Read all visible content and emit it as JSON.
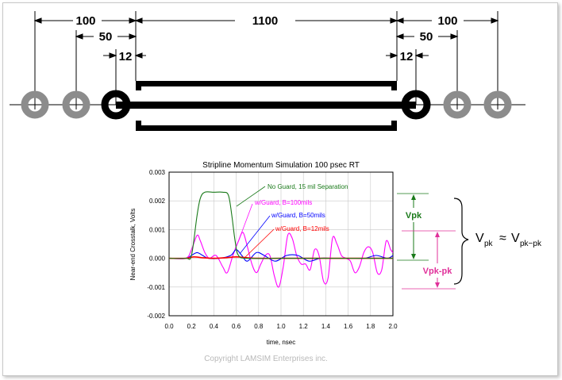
{
  "dimensions": {
    "d100_left": "100",
    "d50_left": "50",
    "d12_left": "12",
    "d1100": "1100",
    "d100_right": "100",
    "d50_right": "50",
    "d12_right": "12"
  },
  "colors": {
    "via_gray": "#8c8c8c",
    "trace": "#000000",
    "green": "#1a7a1a",
    "magenta": "#ff00ff",
    "blue": "#0000ff",
    "red": "#ff0000",
    "accent_pink": "#e0309a"
  },
  "chart_data": {
    "type": "line",
    "title": "Stripline Momentum Simulation 100 psec RT",
    "xlabel": "time, nsec",
    "ylabel": "Near-end Crosstalk, Volts",
    "xlim": [
      0.0,
      2.0
    ],
    "ylim": [
      -0.002,
      0.003
    ],
    "x_ticks": [
      "0.0",
      "0.2",
      "0.4",
      "0.6",
      "0.8",
      "1.0",
      "1.2",
      "1.4",
      "1.6",
      "1.8",
      "2.0"
    ],
    "y_ticks": [
      "0.003",
      "0.002",
      "0.001",
      "0.000",
      "-0.001",
      "-0.002"
    ],
    "grid": true,
    "series": [
      {
        "name": "No Guard, 15 mil Separation",
        "color": "#1a7a1a",
        "x": [
          0.0,
          0.15,
          0.2,
          0.25,
          0.28,
          0.32,
          0.4,
          0.48,
          0.53,
          0.56,
          0.59,
          0.62,
          0.7,
          1.0,
          2.0
        ],
        "y": [
          0.0,
          0.0,
          0.0001,
          0.0015,
          0.0021,
          0.0023,
          0.0023,
          0.0023,
          0.0022,
          0.0015,
          0.0006,
          0.0001,
          0.0,
          0.0,
          0.0
        ]
      },
      {
        "name": "w/Guard, B=100mils",
        "color": "#ff00ff",
        "x": [
          0.0,
          0.15,
          0.2,
          0.25,
          0.28,
          0.32,
          0.36,
          0.42,
          0.48,
          0.52,
          0.57,
          0.62,
          0.66,
          0.7,
          0.74,
          0.78,
          0.82,
          0.86,
          0.9,
          0.94,
          0.98,
          1.02,
          1.06,
          1.1,
          1.14,
          1.18,
          1.22,
          1.26,
          1.3,
          1.34,
          1.38,
          1.42,
          1.46,
          1.5,
          1.54,
          1.58,
          1.62,
          1.66,
          1.7,
          1.74,
          1.78,
          1.82,
          1.86,
          1.9,
          1.94,
          1.98,
          2.0
        ],
        "y": [
          0.0,
          0.0,
          0.0003,
          0.0008,
          0.0006,
          0.0002,
          0.0,
          0.0001,
          -0.0003,
          -0.0005,
          0.0001,
          0.0006,
          0.0009,
          0.0004,
          -0.0002,
          -0.0005,
          -0.0002,
          0.0001,
          0.0001,
          -0.0006,
          -0.001,
          -0.0003,
          0.0008,
          0.0007,
          0.0001,
          -0.0002,
          -0.0002,
          -0.0004,
          0.0003,
          0.0001,
          -0.0008,
          -0.0007,
          0.0007,
          0.0005,
          0.0001,
          0.0,
          -0.0001,
          -0.0005,
          -0.0003,
          0.0002,
          0.0004,
          0.0002,
          -0.0005,
          -0.0004,
          0.0006,
          0.0003,
          0.0002
        ]
      },
      {
        "name": "w/Guard, B=50mils",
        "color": "#0000ff",
        "x": [
          0.0,
          0.15,
          0.2,
          0.25,
          0.3,
          0.35,
          0.45,
          0.55,
          0.6,
          0.65,
          0.7,
          0.78,
          0.85,
          0.95,
          1.05,
          1.15,
          1.25,
          1.35,
          1.45,
          1.55,
          1.65,
          1.75,
          1.85,
          1.95,
          2.0
        ],
        "y": [
          0.0,
          0.0,
          0.0001,
          0.0002,
          0.0001,
          0.0,
          0.0,
          0.0001,
          0.0003,
          0.0001,
          -0.0001,
          0.0002,
          0.0001,
          -0.0001,
          0.0001,
          0.0001,
          -0.0001,
          0.0,
          0.0,
          0.0,
          0.0,
          0.0,
          0.0001,
          0.0,
          0.0001
        ]
      },
      {
        "name": "w/Guard, B=12mils",
        "color": "#ff0000",
        "x": [
          0.0,
          0.15,
          0.22,
          0.3,
          0.4,
          0.5,
          0.6,
          0.7,
          0.8,
          1.0,
          1.2,
          1.4,
          1.6,
          1.8,
          2.0
        ],
        "y": [
          0.0,
          0.0,
          5e-05,
          2e-05,
          0.0,
          2e-05,
          5e-05,
          2e-05,
          0.0,
          0.0,
          0.0,
          0.0,
          0.0,
          0.0,
          0.0
        ]
      }
    ],
    "annotations": {
      "vpk": "Vpk",
      "vpkpk": "Vpk-pk",
      "eq_v": "V",
      "eq_sub_pk": "pk",
      "eq_approx": "≈",
      "eq_v2": "V",
      "eq_sub_pkpk": "pk−pk"
    }
  },
  "copyright": "Copyright LAMSIM Enterprises inc."
}
